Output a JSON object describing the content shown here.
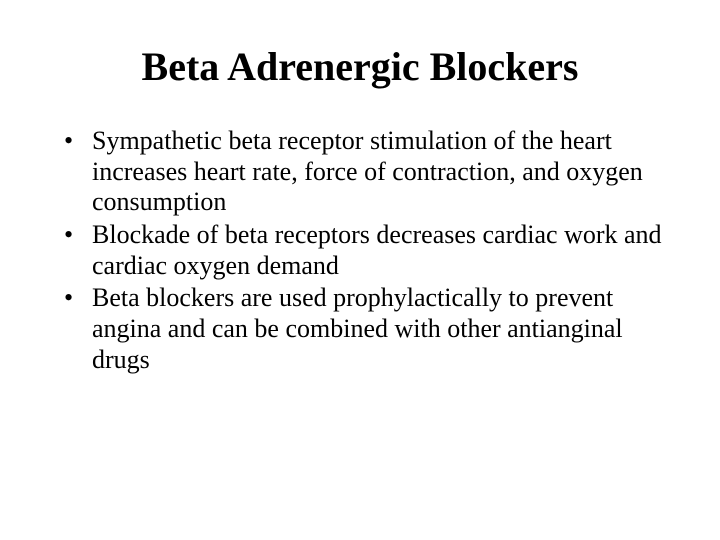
{
  "slide": {
    "title": "Beta Adrenergic Blockers",
    "bullets": [
      "Sympathetic beta receptor stimulation of the heart increases heart rate, force of contraction, and oxygen consumption",
      "Blockade of beta receptors decreases cardiac work and cardiac oxygen demand",
      "Beta blockers are used prophylactically to prevent angina and can be combined with other antianginal drugs"
    ],
    "style": {
      "background_color": "#ffffff",
      "text_color": "#000000",
      "font_family": "Times New Roman",
      "title_fontsize": 40,
      "title_weight": "bold",
      "body_fontsize": 26,
      "bullet_char": "•"
    }
  }
}
